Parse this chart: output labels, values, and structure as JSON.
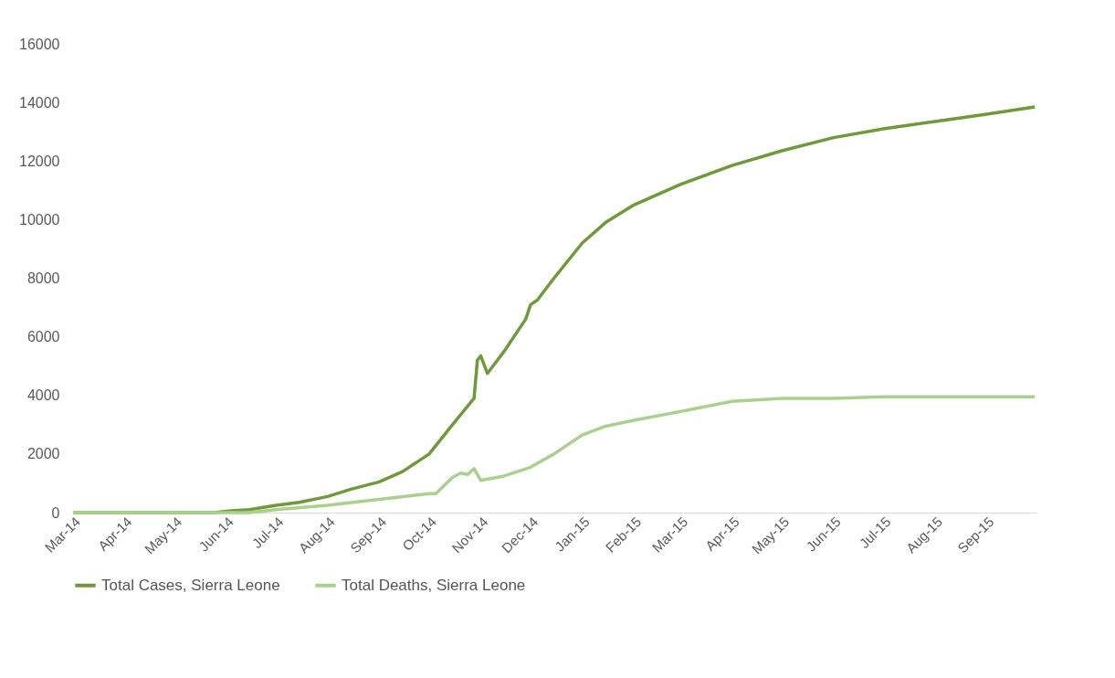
{
  "chart_data": {
    "type": "line",
    "xlim": [
      "2014-03-01",
      "2015-10-01"
    ],
    "xticks": [
      {
        "value": "2014-03-01",
        "label": "Mar-14"
      },
      {
        "value": "2014-04-01",
        "label": "Apr-14"
      },
      {
        "value": "2014-05-01",
        "label": "May-14"
      },
      {
        "value": "2014-06-01",
        "label": "Jun-14"
      },
      {
        "value": "2014-07-01",
        "label": "Jul-14"
      },
      {
        "value": "2014-08-01",
        "label": "Aug-14"
      },
      {
        "value": "2014-09-01",
        "label": "Sep-14"
      },
      {
        "value": "2014-10-01",
        "label": "Oct-14"
      },
      {
        "value": "2014-11-01",
        "label": "Nov-14"
      },
      {
        "value": "2014-12-01",
        "label": "Dec-14"
      },
      {
        "value": "2015-01-01",
        "label": "Jan-15"
      },
      {
        "value": "2015-02-01",
        "label": "Feb-15"
      },
      {
        "value": "2015-03-01",
        "label": "Mar-15"
      },
      {
        "value": "2015-04-01",
        "label": "Apr-15"
      },
      {
        "value": "2015-05-01",
        "label": "May-15"
      },
      {
        "value": "2015-06-01",
        "label": "Jun-15"
      },
      {
        "value": "2015-07-01",
        "label": "Jul-15"
      },
      {
        "value": "2015-08-01",
        "label": "Aug-15"
      },
      {
        "value": "2015-09-01",
        "label": "Sep-15"
      }
    ],
    "ylim": [
      0,
      16000
    ],
    "yticks": [
      0,
      2000,
      4000,
      6000,
      8000,
      10000,
      12000,
      14000,
      16000
    ],
    "grid": false,
    "legend": "bottom",
    "marker": "none",
    "line_style": "solid",
    "series": [
      {
        "name": "Total Cases, Sierra Leone",
        "color": "#6f9a3a",
        "x": [
          "2014-03-01",
          "2014-05-25",
          "2014-06-01",
          "2014-06-15",
          "2014-07-01",
          "2014-07-15",
          "2014-08-01",
          "2014-08-15",
          "2014-09-01",
          "2014-09-15",
          "2014-10-01",
          "2014-10-15",
          "2014-10-28",
          "2014-10-30",
          "2014-11-01",
          "2014-11-05",
          "2014-11-15",
          "2014-11-28",
          "2014-12-01",
          "2014-12-05",
          "2014-12-15",
          "2015-01-01",
          "2015-01-15",
          "2015-02-01",
          "2015-03-01",
          "2015-04-01",
          "2015-05-01",
          "2015-06-01",
          "2015-07-01",
          "2015-08-01",
          "2015-09-01",
          "2015-09-30"
        ],
        "values": [
          0,
          0,
          50,
          100,
          250,
          350,
          550,
          800,
          1050,
          1400,
          2000,
          3000,
          3900,
          5200,
          5350,
          4750,
          5500,
          6600,
          7100,
          7250,
          8000,
          9200,
          9900,
          10500,
          11200,
          11850,
          12350,
          12800,
          13100,
          13350,
          13600,
          13850
        ]
      },
      {
        "name": "Total Deaths, Sierra Leone",
        "color": "#a9d18e",
        "x": [
          "2014-03-01",
          "2014-06-15",
          "2014-07-01",
          "2014-08-01",
          "2014-09-01",
          "2014-10-01",
          "2014-10-05",
          "2014-10-15",
          "2014-10-20",
          "2014-10-24",
          "2014-10-28",
          "2014-11-01",
          "2014-11-15",
          "2014-12-01",
          "2014-12-15",
          "2015-01-01",
          "2015-01-15",
          "2015-02-01",
          "2015-03-01",
          "2015-04-01",
          "2015-05-01",
          "2015-06-01",
          "2015-07-01",
          "2015-09-30"
        ],
        "values": [
          0,
          0,
          100,
          250,
          450,
          650,
          650,
          1200,
          1350,
          1300,
          1500,
          1100,
          1250,
          1550,
          2000,
          2650,
          2950,
          3150,
          3450,
          3800,
          3900,
          3900,
          3950,
          3950
        ]
      }
    ]
  }
}
